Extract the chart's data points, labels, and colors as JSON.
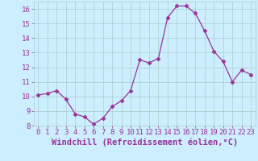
{
  "x": [
    0,
    1,
    2,
    3,
    4,
    5,
    6,
    7,
    8,
    9,
    10,
    11,
    12,
    13,
    14,
    15,
    16,
    17,
    18,
    19,
    20,
    21,
    22,
    23
  ],
  "y": [
    10.1,
    10.2,
    10.4,
    9.8,
    8.8,
    8.6,
    8.1,
    8.5,
    9.3,
    9.7,
    10.4,
    12.5,
    12.3,
    12.6,
    15.4,
    16.2,
    16.2,
    15.7,
    14.5,
    13.1,
    12.4,
    11.0,
    11.8,
    11.5
  ],
  "line_color": "#993399",
  "marker": "D",
  "marker_size": 2.5,
  "background_color": "#cceeff",
  "grid_color": "#aacccc",
  "xlabel": "Windchill (Refroidissement éolien,°C)",
  "xlabel_color": "#993399",
  "tick_color": "#993399",
  "ylim": [
    8,
    16.5
  ],
  "xlim": [
    -0.5,
    23.5
  ],
  "yticks": [
    8,
    9,
    10,
    11,
    12,
    13,
    14,
    15,
    16
  ],
  "xticks": [
    0,
    1,
    2,
    3,
    4,
    5,
    6,
    7,
    8,
    9,
    10,
    11,
    12,
    13,
    14,
    15,
    16,
    17,
    18,
    19,
    20,
    21,
    22,
    23
  ],
  "font_size": 6.5,
  "label_font_size": 7.5
}
